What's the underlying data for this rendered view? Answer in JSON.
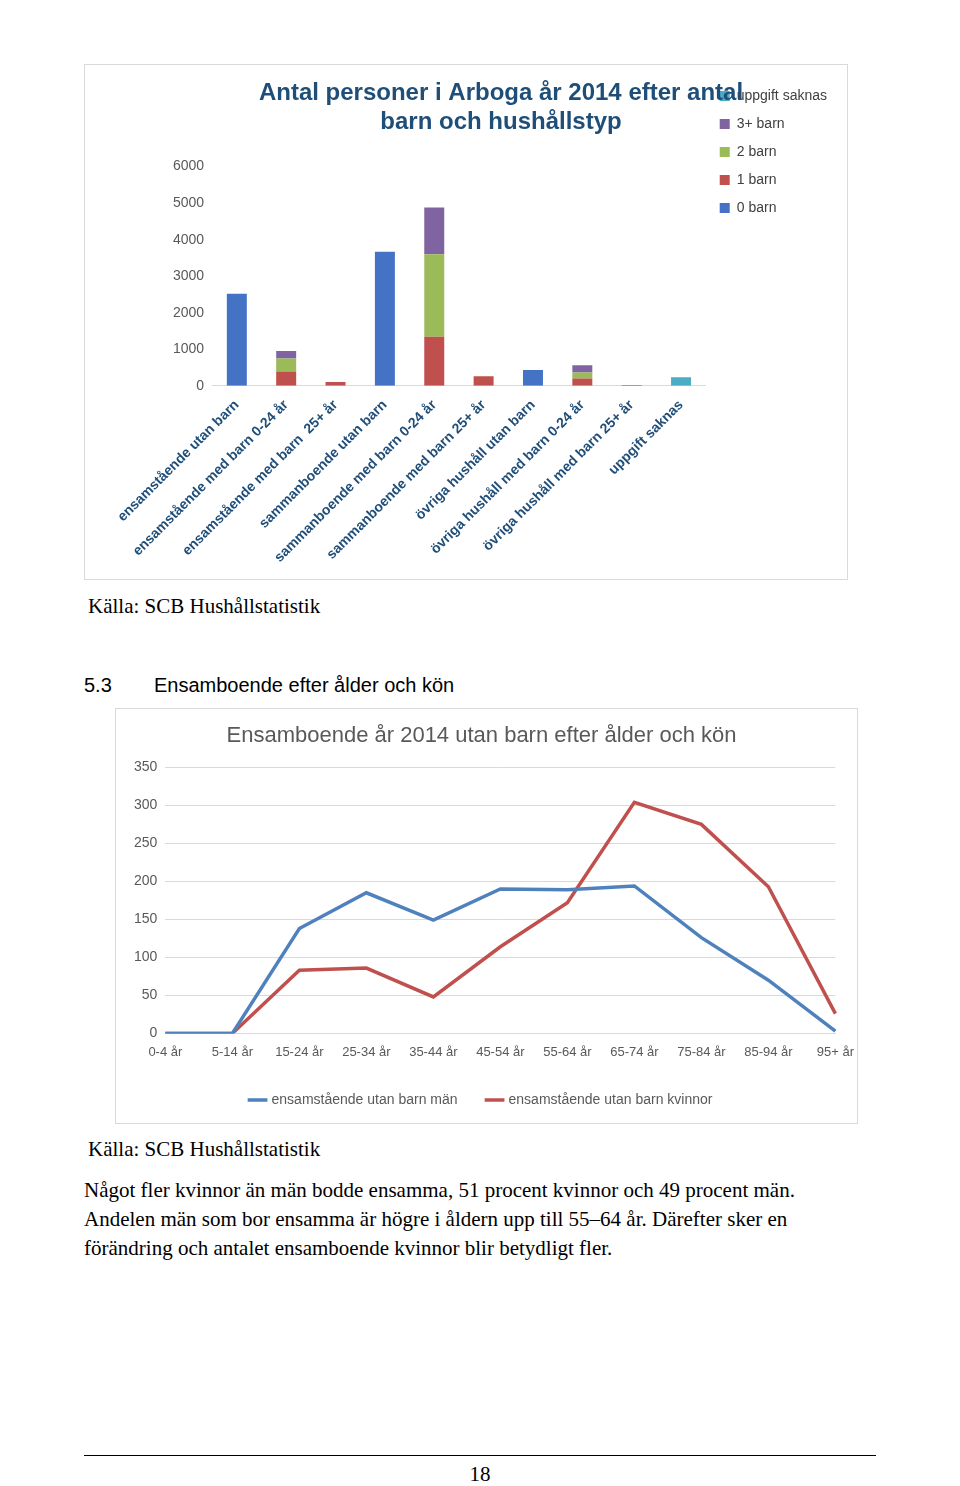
{
  "chart_data": [
    {
      "type": "bar",
      "title": "Antal personer i Arboga år 2014 efter antal barn och hushållstyp",
      "categories": [
        "ensamstående utan barn",
        "ensamstående med barn 0-24 år",
        "ensamstående med barn  25+ år",
        "sammanboende utan barn",
        "sammanboende med barn 0-24 år",
        "sammanboende med barn 25+ år",
        "övriga hushåll utan barn",
        "övriga hushåll med barn 0-24 år",
        "övriga hushåll med barn 25+ år",
        "uppgift saknas"
      ],
      "series": [
        {
          "name": "0 barn",
          "color": "#4472c4",
          "values": [
            2520,
            null,
            null,
            3670,
            null,
            null,
            430,
            null,
            null,
            null
          ]
        },
        {
          "name": "1 barn",
          "color": "#c0504d",
          "values": [
            null,
            390,
            100,
            null,
            1340,
            260,
            null,
            200,
            20,
            null
          ]
        },
        {
          "name": "2 barn",
          "color": "#9bbb59",
          "values": [
            null,
            360,
            null,
            null,
            2260,
            null,
            null,
            160,
            null,
            null
          ]
        },
        {
          "name": "3+ barn",
          "color": "#8064a2",
          "values": [
            null,
            200,
            null,
            null,
            1280,
            null,
            null,
            200,
            null,
            null
          ]
        },
        {
          "name": "uppgift saknas",
          "color": "#4bacc6",
          "values": [
            null,
            null,
            null,
            null,
            null,
            null,
            null,
            null,
            null,
            230
          ]
        }
      ],
      "stacked": true,
      "legend": "right",
      "grid": false,
      "ylim": [
        0,
        6000
      ],
      "yticks": [
        0,
        1000,
        2000,
        3000,
        4000,
        5000,
        6000
      ]
    },
    {
      "type": "line",
      "title": "Ensamboende år 2014 utan barn efter ålder och kön",
      "categories": [
        "0-4 år",
        "5-14 år",
        "15-24 år",
        "25-34 år",
        "35-44 år",
        "45-54 år",
        "55-64 år",
        "65-74 år",
        "75-84 år",
        "85-94 år",
        "95+ år"
      ],
      "series": [
        {
          "name": "ensamstående utan barn män",
          "color": "#4f81bd",
          "values": [
            0,
            0,
            138,
            185,
            149,
            190,
            189,
            194,
            126,
            70,
            3
          ]
        },
        {
          "name": "ensamstående utan barn kvinnor",
          "color": "#c0504d",
          "values": [
            0,
            0,
            83,
            86,
            48,
            114,
            172,
            304,
            275,
            193,
            26
          ]
        }
      ],
      "legend": "bottom",
      "grid": true,
      "ylim": [
        0,
        350
      ],
      "yticks": [
        0,
        50,
        100,
        150,
        200,
        250,
        300,
        350
      ]
    }
  ],
  "page": {
    "source_1": "Källa: SCB Hushållstatistik",
    "heading": {
      "number": "5.3",
      "title": "Ensamboende efter ålder och kön"
    },
    "source_2": "Källa: SCB Hushållstatistik",
    "paragraph": "Något fler kvinnor än män bodde ensamma, 51 procent kvinnor och 49 procent män. Andelen män som bor ensamma är högre i åldern upp till 55–64 år. Därefter sker en förändring och antalet ensamboende kvinnor blir betydligt fler.",
    "page_number": "18"
  }
}
